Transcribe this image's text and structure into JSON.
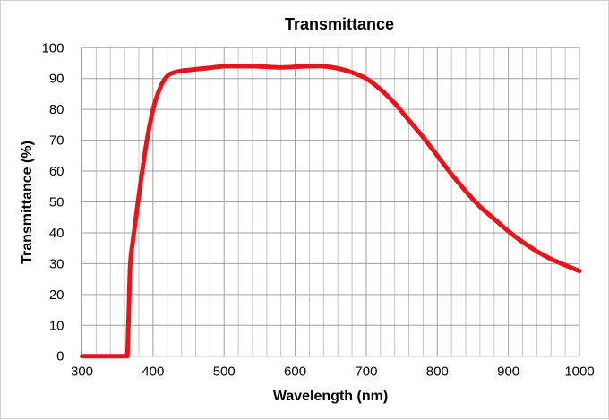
{
  "chart_data": {
    "type": "line",
    "title": "Transmittance",
    "xlabel": "Wavelength (nm)",
    "ylabel": "Transmittance (%)",
    "xlim": [
      300,
      1000
    ],
    "ylim": [
      0,
      100
    ],
    "x_ticks": [
      300,
      400,
      500,
      600,
      700,
      800,
      900,
      1000
    ],
    "y_ticks": [
      0,
      10,
      20,
      30,
      40,
      50,
      60,
      70,
      80,
      90,
      100
    ],
    "x_minor_grid_step": 20,
    "grid": true,
    "line_color": "#e8141a",
    "series": [
      {
        "x": [
          300,
          364,
          366,
          368,
          372,
          380,
          390,
          400,
          410,
          420,
          430,
          440,
          460,
          480,
          500,
          520,
          540,
          560,
          580,
          600,
          620,
          640,
          660,
          680,
          700,
          720,
          740,
          760,
          780,
          800,
          820,
          840,
          860,
          880,
          900,
          920,
          940,
          960,
          980,
          1000
        ],
        "y": [
          0,
          0,
          15,
          30,
          38,
          52,
          68,
          80,
          87,
          90.8,
          92,
          92.5,
          93,
          93.5,
          94,
          94,
          94,
          93.8,
          93.6,
          93.8,
          94,
          94,
          93.3,
          92,
          90,
          86.5,
          82,
          76.5,
          71,
          65,
          59,
          53.5,
          48.5,
          44.5,
          40.5,
          37,
          34,
          31.5,
          29.5,
          27.6
        ]
      }
    ]
  }
}
